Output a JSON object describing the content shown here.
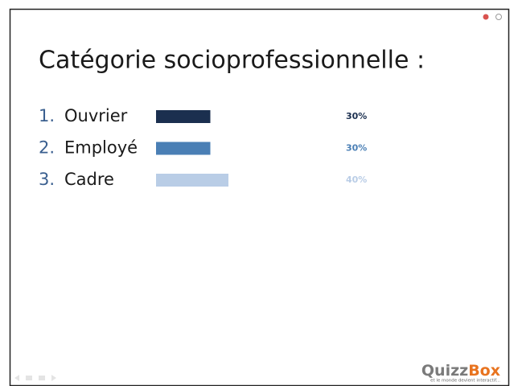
{
  "chart_data": {
    "type": "bar",
    "orientation": "horizontal",
    "title": "Catégorie socioprofessionnelle :",
    "list_markers": [
      "1.",
      "2.",
      "3."
    ],
    "categories": [
      "Ouvrier",
      "Employé",
      "Cadre"
    ],
    "values": [
      30,
      30,
      40
    ],
    "value_labels": [
      "30%",
      "30%",
      "40%"
    ],
    "colors": [
      "#1b2f4f",
      "#4a7fb5",
      "#b9cde6"
    ],
    "logo_parts": [
      "Quizz",
      "Box"
    ],
    "logo_tagline": "et le monde devient interactif..."
  }
}
